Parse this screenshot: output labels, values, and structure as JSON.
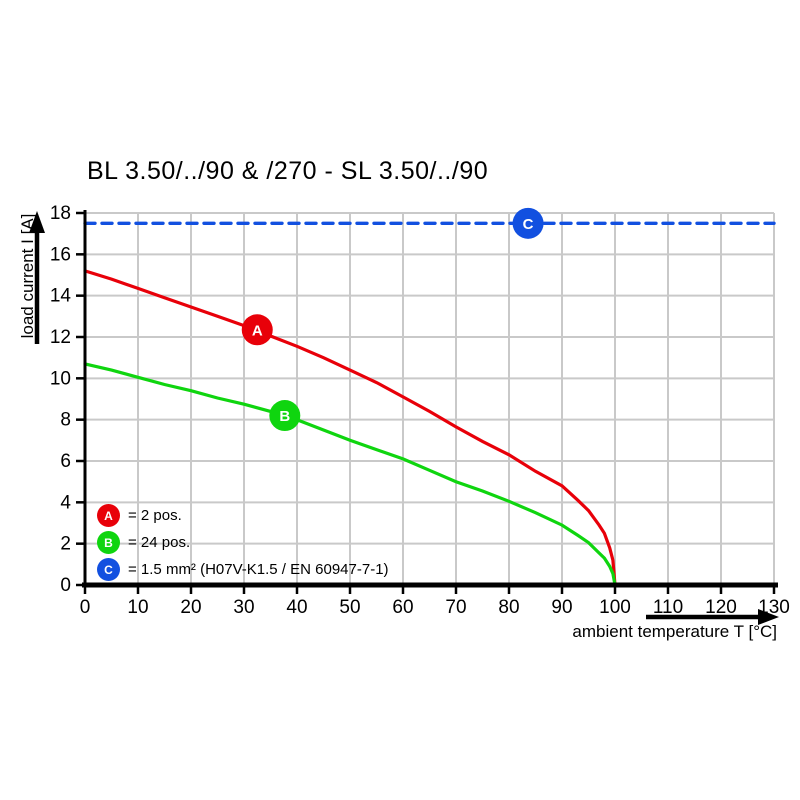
{
  "title": "BL 3.50/../90 & /270 - SL 3.50/../90",
  "chart_data": {
    "type": "line",
    "title": "BL 3.50/../90 & /270 - SL 3.50/../90",
    "xlabel": "ambient temperature T [°C]",
    "ylabel": "load current I [A]",
    "xlim": [
      0,
      130
    ],
    "ylim": [
      0,
      18
    ],
    "xticks": [
      0,
      10,
      20,
      30,
      40,
      50,
      60,
      70,
      80,
      90,
      100,
      110,
      120,
      130
    ],
    "yticks": [
      0,
      2,
      4,
      6,
      8,
      10,
      12,
      14,
      16,
      18
    ],
    "grid": true,
    "legend_position": "inside-bottom-left",
    "colors": {
      "grid": "#c9c9c9",
      "axis": "#000000"
    },
    "series": [
      {
        "name": "A",
        "legend_label": "= 2 pos.",
        "color": "#e80009",
        "style": "solid",
        "marker": {
          "x": 32.5,
          "y": 12.35
        },
        "points": [
          [
            0,
            15.2
          ],
          [
            5,
            14.8
          ],
          [
            10,
            14.35
          ],
          [
            15,
            13.9
          ],
          [
            20,
            13.45
          ],
          [
            25,
            13.0
          ],
          [
            30,
            12.55
          ],
          [
            35,
            12.05
          ],
          [
            40,
            11.55
          ],
          [
            45,
            11.0
          ],
          [
            50,
            10.4
          ],
          [
            55,
            9.8
          ],
          [
            60,
            9.1
          ],
          [
            65,
            8.4
          ],
          [
            70,
            7.65
          ],
          [
            75,
            6.95
          ],
          [
            80,
            6.3
          ],
          [
            85,
            5.5
          ],
          [
            90,
            4.8
          ],
          [
            93,
            4.1
          ],
          [
            95,
            3.6
          ],
          [
            97,
            2.9
          ],
          [
            98,
            2.5
          ],
          [
            99,
            1.8
          ],
          [
            99.6,
            1.2
          ],
          [
            100,
            0
          ]
        ]
      },
      {
        "name": "B",
        "legend_label": "= 24 pos.",
        "color": "#0fd50f",
        "style": "solid",
        "marker": {
          "x": 37.7,
          "y": 8.2
        },
        "points": [
          [
            0,
            10.7
          ],
          [
            5,
            10.4
          ],
          [
            10,
            10.05
          ],
          [
            15,
            9.7
          ],
          [
            20,
            9.4
          ],
          [
            25,
            9.05
          ],
          [
            30,
            8.75
          ],
          [
            35,
            8.4
          ],
          [
            40,
            8.0
          ],
          [
            45,
            7.5
          ],
          [
            50,
            7.0
          ],
          [
            55,
            6.55
          ],
          [
            60,
            6.1
          ],
          [
            65,
            5.55
          ],
          [
            70,
            5.0
          ],
          [
            75,
            4.55
          ],
          [
            80,
            4.05
          ],
          [
            85,
            3.5
          ],
          [
            90,
            2.9
          ],
          [
            93,
            2.4
          ],
          [
            95,
            2.05
          ],
          [
            97,
            1.55
          ],
          [
            98,
            1.3
          ],
          [
            99,
            0.9
          ],
          [
            99.6,
            0.55
          ],
          [
            100,
            0
          ]
        ]
      },
      {
        "name": "C",
        "legend_label": "= 1.5 mm² (H07V-K1.5 / EN 60947-7-1)",
        "color": "#1250e0",
        "style": "dashed",
        "marker": {
          "x": 83.6,
          "y": 17.5
        },
        "points": [
          [
            0,
            17.5
          ],
          [
            130,
            17.5
          ]
        ]
      }
    ]
  }
}
